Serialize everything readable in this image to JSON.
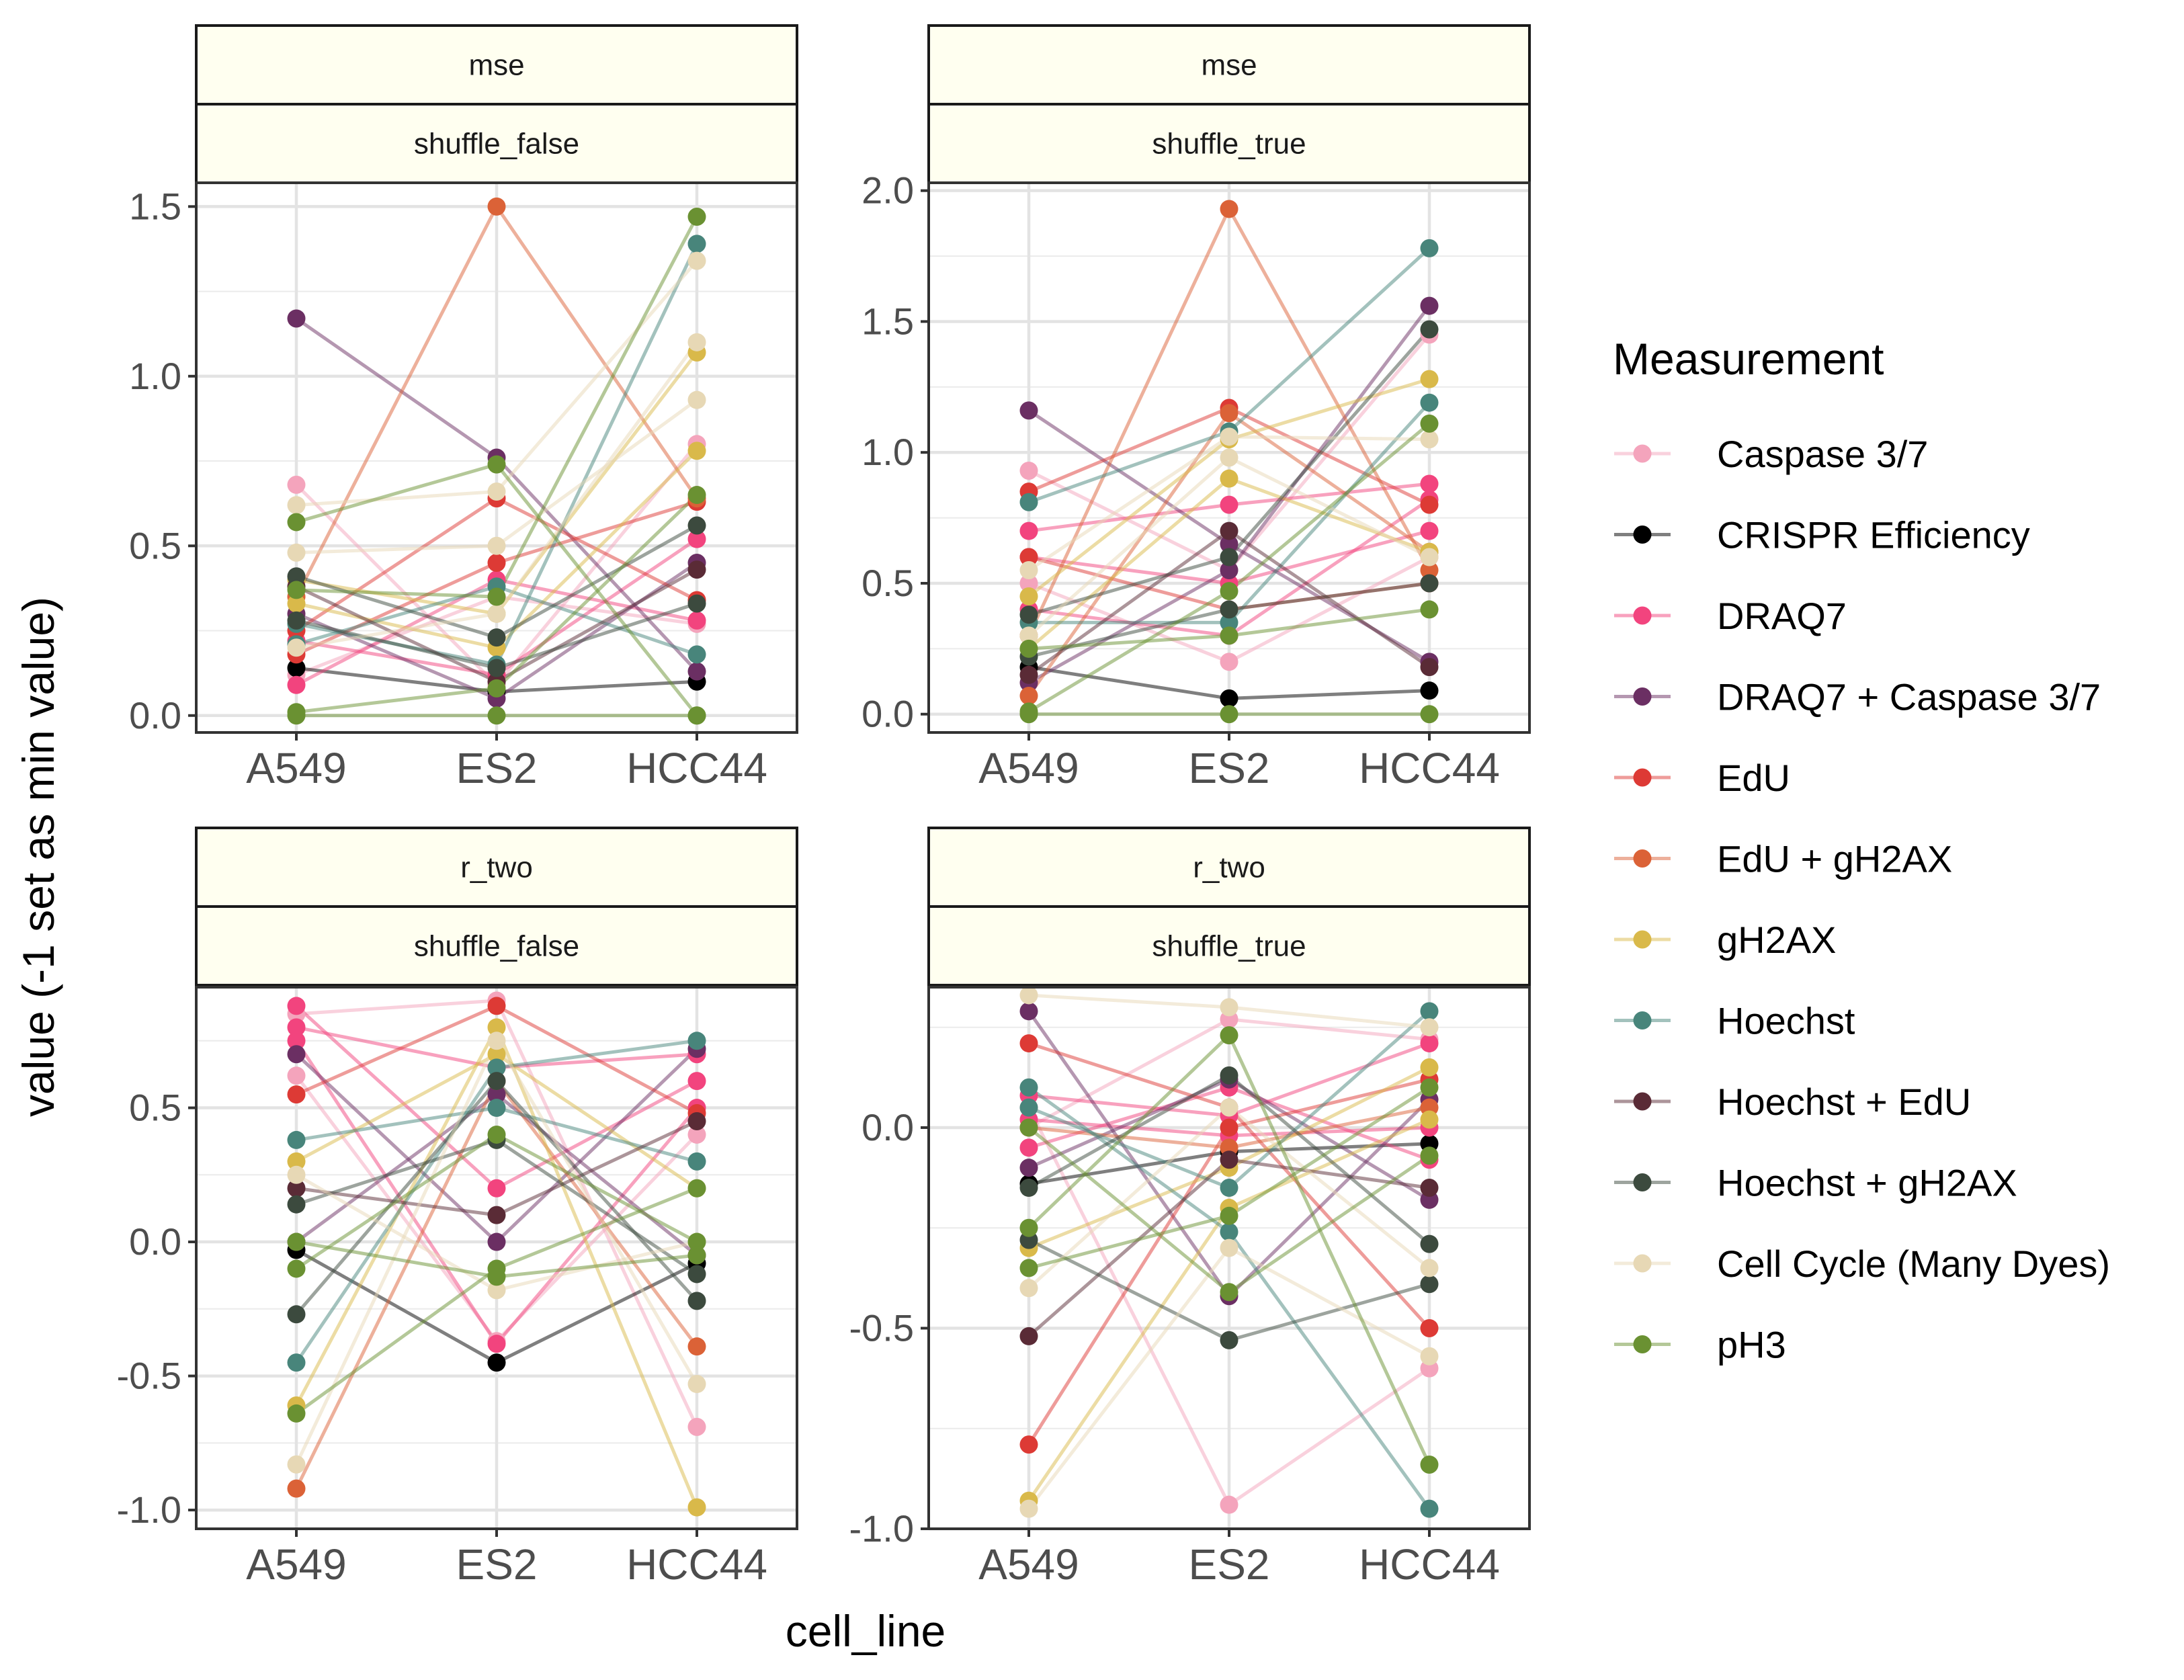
{
  "chart_data": {
    "type": "line",
    "layout": "facet grid 2x2",
    "xlabel": "cell_line",
    "ylabel": "value (-1 set as min value)",
    "categories": [
      "A549",
      "ES2",
      "HCC44"
    ],
    "legend": {
      "title": "Measurement",
      "placement": "right",
      "items": [
        {
          "name": "Caspase 3/7",
          "color": "#F4A4BC"
        },
        {
          "name": "CRISPR Efficiency",
          "color": "#000000"
        },
        {
          "name": "DRAQ7",
          "color": "#F2447E"
        },
        {
          "name": "DRAQ7 + Caspase 3/7",
          "color": "#6B2F63"
        },
        {
          "name": "EdU",
          "color": "#DD3A35"
        },
        {
          "name": "EdU + gH2AX",
          "color": "#DB6237"
        },
        {
          "name": "gH2AX",
          "color": "#D9B94A"
        },
        {
          "name": "Hoechst",
          "color": "#48857B"
        },
        {
          "name": "Hoechst + EdU",
          "color": "#5A2B36"
        },
        {
          "name": "Hoechst + gH2AX",
          "color": "#3C4A3E"
        },
        {
          "name": "Cell Cycle (Many Dyes)",
          "color": "#E7D8B5"
        },
        {
          "name": "pH3",
          "color": "#6A9132"
        }
      ]
    },
    "panels": [
      {
        "strip_top": "mse",
        "strip_bottom": "shuffle_false",
        "ylim": [
          -0.05,
          1.57
        ],
        "yticks": [
          0.0,
          0.5,
          1.0,
          1.5
        ],
        "ytick_labels": [
          "0.0",
          "0.5",
          "1.0",
          "1.5"
        ],
        "grid": true,
        "lines": [
          {
            "series": "Caspase 3/7",
            "values": [
              0.68,
              0.09,
              0.8
            ]
          },
          {
            "series": "Caspase 3/7",
            "values": [
              0.12,
              0.35,
              0.27
            ]
          },
          {
            "series": "CRISPR Efficiency",
            "values": [
              0.14,
              0.07,
              0.1
            ]
          },
          {
            "series": "DRAQ7",
            "values": [
              0.09,
              0.4,
              0.28
            ]
          },
          {
            "series": "DRAQ7",
            "values": [
              0.22,
              0.12,
              0.52
            ]
          },
          {
            "series": "DRAQ7 + Caspase 3/7",
            "values": [
              1.17,
              0.76,
              0.13
            ]
          },
          {
            "series": "DRAQ7 + Caspase 3/7",
            "values": [
              0.3,
              0.05,
              0.45
            ]
          },
          {
            "series": "EdU",
            "values": [
              0.25,
              0.64,
              0.34
            ]
          },
          {
            "series": "EdU",
            "values": [
              0.18,
              0.45,
              0.63
            ]
          },
          {
            "series": "EdU + gH2AX",
            "values": [
              0.35,
              1.5,
              0.64
            ]
          },
          {
            "series": "gH2AX",
            "values": [
              0.4,
              0.3,
              1.07
            ]
          },
          {
            "series": "gH2AX",
            "values": [
              0.33,
              0.2,
              0.78
            ]
          },
          {
            "series": "Hoechst",
            "values": [
              0.27,
              0.15,
              1.39
            ]
          },
          {
            "series": "Hoechst",
            "values": [
              0.21,
              0.38,
              0.18
            ]
          },
          {
            "series": "Hoechst + EdU",
            "values": [
              0.38,
              0.1,
              0.43
            ]
          },
          {
            "series": "Hoechst + gH2AX",
            "values": [
              0.41,
              0.23,
              0.56
            ]
          },
          {
            "series": "Hoechst + gH2AX",
            "values": [
              0.28,
              0.14,
              0.33
            ]
          },
          {
            "series": "Cell Cycle (Many Dyes)",
            "values": [
              0.62,
              0.66,
              1.34
            ]
          },
          {
            "series": "Cell Cycle (Many Dyes)",
            "values": [
              0.48,
              0.5,
              0.93
            ]
          },
          {
            "series": "Cell Cycle (Many Dyes)",
            "values": [
              0.2,
              0.3,
              1.1
            ]
          },
          {
            "series": "pH3",
            "values": [
              0.57,
              0.74,
              0.0
            ]
          },
          {
            "series": "pH3",
            "values": [
              0.37,
              0.35,
              1.47
            ]
          },
          {
            "series": "pH3",
            "values": [
              0.0,
              0.0,
              0.0
            ]
          },
          {
            "series": "pH3",
            "values": [
              0.01,
              0.08,
              0.65
            ]
          }
        ]
      },
      {
        "strip_top": "mse",
        "strip_bottom": "shuffle_true",
        "ylim": [
          -0.07,
          2.03
        ],
        "yticks": [
          0.0,
          0.5,
          1.0,
          1.5,
          2.0
        ],
        "ytick_labels": [
          "0.0",
          "0.5",
          "1.0",
          "1.5",
          "2.0"
        ],
        "grid": true,
        "lines": [
          {
            "series": "Caspase 3/7",
            "values": [
              0.93,
              0.55,
              1.45
            ]
          },
          {
            "series": "Caspase 3/7",
            "values": [
              0.5,
              0.2,
              0.6
            ]
          },
          {
            "series": "CRISPR Efficiency",
            "values": [
              0.18,
              0.06,
              0.09
            ]
          },
          {
            "series": "DRAQ7",
            "values": [
              0.7,
              0.8,
              0.88
            ]
          },
          {
            "series": "DRAQ7",
            "values": [
              0.4,
              0.3,
              0.82
            ]
          },
          {
            "series": "DRAQ7",
            "values": [
              0.6,
              0.5,
              0.7
            ]
          },
          {
            "series": "DRAQ7 + Caspase 3/7",
            "values": [
              1.16,
              0.65,
              0.2
            ]
          },
          {
            "series": "DRAQ7 + Caspase 3/7",
            "values": [
              0.12,
              0.55,
              1.56
            ]
          },
          {
            "series": "EdU",
            "values": [
              0.85,
              1.17,
              0.8
            ]
          },
          {
            "series": "EdU",
            "values": [
              0.6,
              0.4,
              0.5
            ]
          },
          {
            "series": "EdU + gH2AX",
            "values": [
              0.3,
              1.93,
              0.55
            ]
          },
          {
            "series": "EdU + gH2AX",
            "values": [
              0.07,
              1.15,
              0.62
            ]
          },
          {
            "series": "gH2AX",
            "values": [
              0.45,
              1.05,
              1.28
            ]
          },
          {
            "series": "gH2AX",
            "values": [
              0.25,
              0.9,
              0.62
            ]
          },
          {
            "series": "Hoechst",
            "values": [
              0.81,
              1.08,
              1.78
            ]
          },
          {
            "series": "Hoechst",
            "values": [
              0.35,
              0.35,
              1.19
            ]
          },
          {
            "series": "Hoechst + EdU",
            "values": [
              0.15,
              0.7,
              0.18
            ]
          },
          {
            "series": "Hoechst + gH2AX",
            "values": [
              0.38,
              0.6,
              1.47
            ]
          },
          {
            "series": "Hoechst + gH2AX",
            "values": [
              0.22,
              0.4,
              0.5
            ]
          },
          {
            "series": "Cell Cycle (Many Dyes)",
            "values": [
              0.55,
              1.06,
              1.05
            ]
          },
          {
            "series": "Cell Cycle (Many Dyes)",
            "values": [
              0.3,
              0.98,
              0.6
            ]
          },
          {
            "series": "pH3",
            "values": [
              0.01,
              0.47,
              1.11
            ]
          },
          {
            "series": "pH3",
            "values": [
              0.0,
              0.0,
              0.0
            ]
          },
          {
            "series": "pH3",
            "values": [
              0.25,
              0.3,
              0.4
            ]
          }
        ]
      },
      {
        "strip_top": "r_two",
        "strip_bottom": "shuffle_false",
        "ylim": [
          -1.07,
          0.95
        ],
        "yticks": [
          -1.0,
          -0.5,
          0.0,
          0.5
        ],
        "ytick_labels": [
          "-1.0",
          "-0.5",
          "0.0",
          "0.5"
        ],
        "grid": true,
        "lines": [
          {
            "series": "Caspase 3/7",
            "values": [
              0.85,
              0.9,
              -0.69
            ]
          },
          {
            "series": "Caspase 3/7",
            "values": [
              0.62,
              -0.37,
              0.4
            ]
          },
          {
            "series": "CRISPR Efficiency",
            "values": [
              -0.03,
              -0.45,
              -0.08
            ]
          },
          {
            "series": "DRAQ7",
            "values": [
              0.88,
              0.2,
              0.6
            ]
          },
          {
            "series": "DRAQ7",
            "values": [
              0.8,
              0.65,
              0.7
            ]
          },
          {
            "series": "DRAQ7",
            "values": [
              0.75,
              -0.38,
              0.5
            ]
          },
          {
            "series": "DRAQ7 + Caspase 3/7",
            "values": [
              0.7,
              0.0,
              0.72
            ]
          },
          {
            "series": "DRAQ7 + Caspase 3/7",
            "values": [
              0.0,
              0.55,
              -0.05
            ]
          },
          {
            "series": "EdU",
            "values": [
              0.55,
              0.88,
              0.48
            ]
          },
          {
            "series": "EdU + gH2AX",
            "values": [
              -0.92,
              0.6,
              -0.39
            ]
          },
          {
            "series": "gH2AX",
            "values": [
              -0.61,
              0.8,
              -0.99
            ]
          },
          {
            "series": "gH2AX",
            "values": [
              0.3,
              0.7,
              0.2
            ]
          },
          {
            "series": "Hoechst",
            "values": [
              -0.45,
              0.65,
              0.75
            ]
          },
          {
            "series": "Hoechst",
            "values": [
              0.38,
              0.5,
              0.3
            ]
          },
          {
            "series": "Hoechst + EdU",
            "values": [
              0.2,
              0.1,
              0.45
            ]
          },
          {
            "series": "Hoechst + gH2AX",
            "values": [
              -0.27,
              0.6,
              -0.22
            ]
          },
          {
            "series": "Hoechst + gH2AX",
            "values": [
              0.14,
              0.38,
              -0.12
            ]
          },
          {
            "series": "Cell Cycle (Many Dyes)",
            "values": [
              -0.83,
              0.75,
              -0.53
            ]
          },
          {
            "series": "Cell Cycle (Many Dyes)",
            "values": [
              0.25,
              -0.18,
              0.0
            ]
          },
          {
            "series": "pH3",
            "values": [
              -0.64,
              -0.1,
              0.2
            ]
          },
          {
            "series": "pH3",
            "values": [
              -0.1,
              0.4,
              0.0
            ]
          },
          {
            "series": "pH3",
            "values": [
              0.0,
              -0.13,
              -0.05
            ]
          }
        ]
      },
      {
        "strip_top": "r_two",
        "strip_bottom": "shuffle_true",
        "ylim": [
          -1.0,
          0.35
        ],
        "yticks": [
          -1.0,
          -0.5,
          0.0
        ],
        "ytick_labels": [
          "-1.0",
          "-0.5",
          "0.0"
        ],
        "grid": true,
        "lines": [
          {
            "series": "Caspase 3/7",
            "values": [
              0.05,
              -0.94,
              -0.6
            ]
          },
          {
            "series": "Caspase 3/7",
            "values": [
              0.0,
              0.27,
              0.22
            ]
          },
          {
            "series": "CRISPR Efficiency",
            "values": [
              -0.14,
              -0.06,
              -0.04
            ]
          },
          {
            "series": "DRAQ7",
            "values": [
              0.08,
              0.03,
              0.21
            ]
          },
          {
            "series": "DRAQ7",
            "values": [
              -0.05,
              0.1,
              -0.08
            ]
          },
          {
            "series": "DRAQ7",
            "values": [
              0.02,
              -0.02,
              0.0
            ]
          },
          {
            "series": "DRAQ7 + Caspase 3/7",
            "values": [
              0.29,
              -0.42,
              0.07
            ]
          },
          {
            "series": "DRAQ7 + Caspase 3/7",
            "values": [
              -0.1,
              0.12,
              -0.18
            ]
          },
          {
            "series": "EdU",
            "values": [
              -0.79,
              0.0,
              0.12
            ]
          },
          {
            "series": "EdU",
            "values": [
              0.21,
              0.05,
              -0.5
            ]
          },
          {
            "series": "EdU + gH2AX",
            "values": [
              0.0,
              -0.05,
              0.05
            ]
          },
          {
            "series": "gH2AX",
            "values": [
              -0.93,
              -0.2,
              0.02
            ]
          },
          {
            "series": "gH2AX",
            "values": [
              -0.3,
              -0.1,
              0.15
            ]
          },
          {
            "series": "Hoechst",
            "values": [
              0.1,
              -0.26,
              -0.95
            ]
          },
          {
            "series": "Hoechst",
            "values": [
              0.05,
              -0.15,
              0.29
            ]
          },
          {
            "series": "Hoechst + EdU",
            "values": [
              -0.52,
              -0.08,
              -0.15
            ]
          },
          {
            "series": "Hoechst + gH2AX",
            "values": [
              -0.28,
              -0.53,
              -0.39
            ]
          },
          {
            "series": "Hoechst + gH2AX",
            "values": [
              -0.15,
              0.13,
              -0.29
            ]
          },
          {
            "series": "Cell Cycle (Many Dyes)",
            "values": [
              0.33,
              0.3,
              0.25
            ]
          },
          {
            "series": "Cell Cycle (Many Dyes)",
            "values": [
              -0.95,
              -0.3,
              -0.57
            ]
          },
          {
            "series": "Cell Cycle (Many Dyes)",
            "values": [
              -0.4,
              0.05,
              -0.35
            ]
          },
          {
            "series": "pH3",
            "values": [
              -0.25,
              0.23,
              -0.84
            ]
          },
          {
            "series": "pH3",
            "values": [
              0.0,
              -0.41,
              -0.07
            ]
          },
          {
            "series": "pH3",
            "values": [
              -0.35,
              -0.22,
              0.1
            ]
          }
        ]
      }
    ]
  }
}
